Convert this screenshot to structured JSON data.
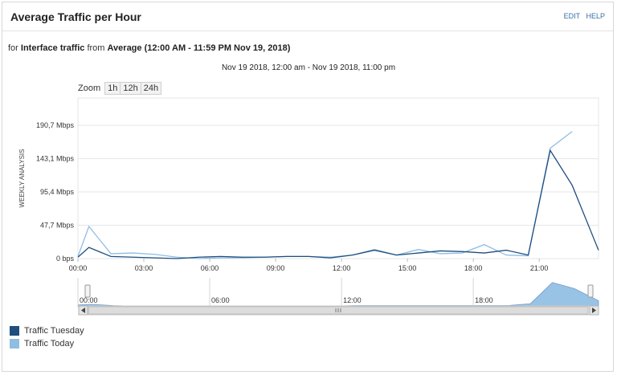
{
  "header": {
    "title": "Average Traffic per Hour",
    "edit_label": "EDIT",
    "help_label": "HELP"
  },
  "subtitle": {
    "prefix": "for",
    "metric": "Interface traffic",
    "from_word": "from",
    "range": "Average (12:00 AM - 11:59 PM Nov 19, 2018)"
  },
  "date_range": "Nov 19 2018, 12:00 am - Nov 19 2018, 11:00 pm",
  "zoom": {
    "label": "Zoom",
    "options": [
      "1h",
      "12h",
      "24h"
    ]
  },
  "colors": {
    "tuesday": "#1f4e7f",
    "today": "#8fbde3",
    "grid": "#e6e6e6",
    "navigator_fill": "#8fbde3"
  },
  "chart_data": {
    "type": "line",
    "ylabel": "WEEKLY ANALYSIS",
    "ylim": [
      0,
      230
    ],
    "yticks": [
      "0 bps",
      "47,7 Mbps",
      "95,4 Mbps",
      "143,1 Mbps",
      "190,7 Mbps"
    ],
    "ytick_values": [
      0,
      47.7,
      95.4,
      143.1,
      190.7
    ],
    "xlim": [
      0,
      23.7
    ],
    "xticks": [
      "00:00",
      "03:00",
      "06:00",
      "09:00",
      "12:00",
      "15:00",
      "18:00",
      "21:00"
    ],
    "xtick_values": [
      0,
      3,
      6,
      9,
      12,
      15,
      18,
      21
    ],
    "series": [
      {
        "name": "Traffic Tuesday",
        "x": [
          -0.4,
          0.5,
          1.5,
          2.5,
          3.5,
          4.5,
          5.5,
          6.5,
          7.5,
          8.5,
          9.5,
          10.5,
          11.5,
          12.5,
          13.5,
          14.5,
          15.5,
          16.5,
          17.5,
          18.5,
          19.5,
          20.5,
          21.5,
          22.5,
          23.7
        ],
        "values": [
          2,
          16,
          3,
          2,
          1,
          0,
          2,
          3,
          2,
          2,
          3,
          3,
          1,
          5,
          12,
          5,
          8,
          11,
          10,
          8,
          12,
          5,
          155,
          105,
          12
        ]
      },
      {
        "name": "Traffic Today",
        "x": [
          -0.4,
          0.5,
          1.5,
          2.5,
          3.5,
          4.5,
          5.5,
          6.5,
          7.5,
          8.5,
          9.5,
          10.5,
          11.5,
          12.5,
          13.5,
          14.5,
          15.5,
          16.5,
          17.5,
          18.5,
          19.5,
          20.5,
          21.5,
          22.5
        ],
        "values": [
          3,
          46,
          7,
          8,
          6,
          2,
          0,
          1,
          1,
          2,
          3,
          3,
          2,
          5,
          13,
          5,
          13,
          7,
          8,
          20,
          5,
          4,
          158,
          182
        ]
      }
    ],
    "navigator": {
      "xticks": [
        "00:00",
        "06:00",
        "12:00",
        "18:00"
      ],
      "xtick_values": [
        0,
        6,
        12,
        18
      ],
      "values": [
        3,
        4,
        2,
        1,
        1,
        1,
        1,
        1,
        1,
        1,
        1,
        1,
        1,
        2,
        2,
        2,
        2,
        2,
        2,
        2,
        2,
        5,
        40,
        30,
        10
      ]
    }
  },
  "legend": [
    {
      "label": "Traffic Tuesday",
      "color": "#1f4e7f"
    },
    {
      "label": "Traffic Today",
      "color": "#8fbde3"
    }
  ]
}
